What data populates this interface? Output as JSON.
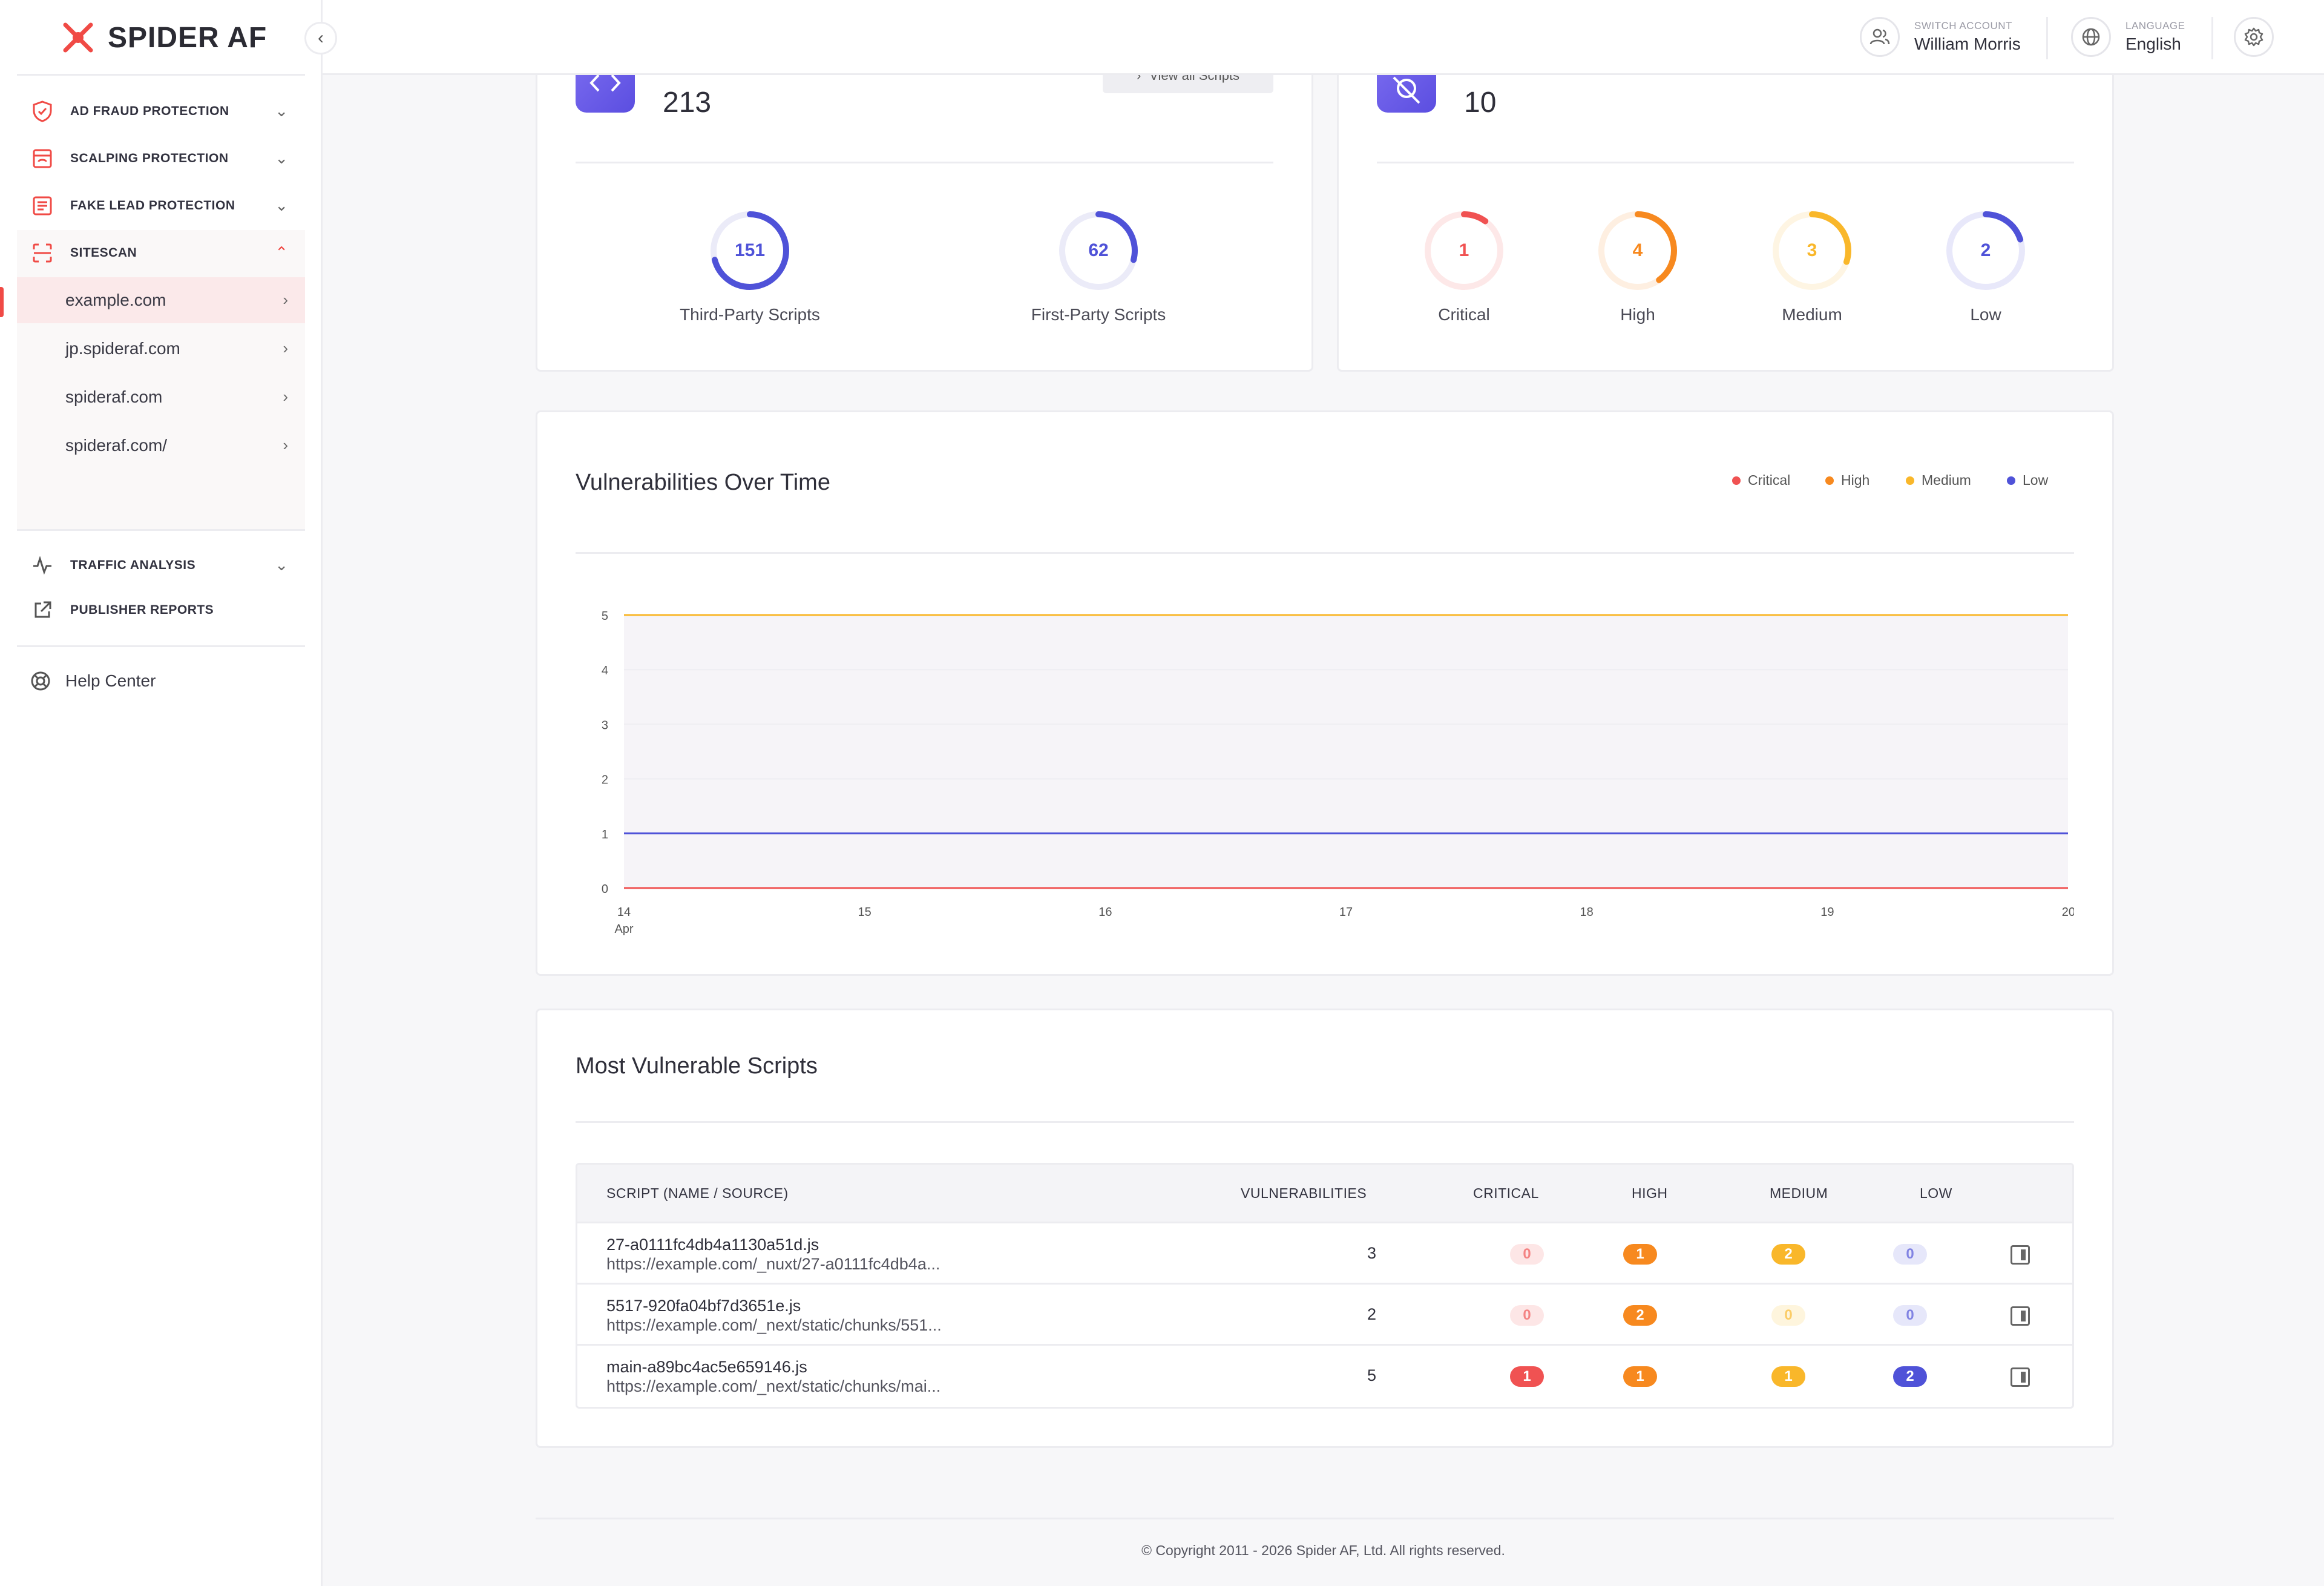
{
  "brand": {
    "name": "SPIDER AF"
  },
  "header": {
    "switch_account_label": "SWITCH ACCOUNT",
    "account_name": "William Morris",
    "language_label": "LANGUAGE",
    "language_value": "English"
  },
  "sidebar": {
    "items": [
      {
        "label": "AD FRAUD PROTECTION"
      },
      {
        "label": "SCALPING PROTECTION"
      },
      {
        "label": "FAKE LEAD PROTECTION"
      },
      {
        "label": "SITESCAN"
      }
    ],
    "sites": [
      "example.com",
      "jp.spideraf.com",
      "spideraf.com",
      "spideraf.com/"
    ],
    "active_site": "example.com",
    "lower_items": [
      {
        "label": "TRAFFIC ANALYSIS"
      },
      {
        "label": "PUBLISHER REPORTS"
      }
    ],
    "help": "Help Center"
  },
  "scripts_card": {
    "total": "213",
    "view_all": "View all Scripts",
    "third_party": {
      "value": "151",
      "label": "Third-Party Scripts",
      "fraction": 0.709
    },
    "first_party": {
      "value": "62",
      "label": "First-Party Scripts",
      "fraction": 0.291
    }
  },
  "vuln_card": {
    "total": "10",
    "levels": [
      {
        "value": "1",
        "label": "Critical",
        "fraction": 0.1,
        "color": "#f05252"
      },
      {
        "value": "4",
        "label": "High",
        "fraction": 0.4,
        "color": "#f7891f"
      },
      {
        "value": "3",
        "label": "Medium",
        "fraction": 0.3,
        "color": "#f9b72a"
      },
      {
        "value": "2",
        "label": "Low",
        "fraction": 0.2,
        "color": "#4f52d8"
      }
    ]
  },
  "chart_data": {
    "type": "line",
    "title": "Vulnerabilities Over Time",
    "x": [
      "14",
      "15",
      "16",
      "17",
      "18",
      "19",
      "20"
    ],
    "x_sub_label": "Apr",
    "ylim": [
      0,
      5
    ],
    "yticks": [
      "0",
      "1",
      "2",
      "3",
      "4",
      "5"
    ],
    "series": [
      {
        "name": "Critical",
        "color": "#f05252",
        "values": [
          0,
          0,
          0,
          0,
          0,
          0,
          0
        ]
      },
      {
        "name": "High",
        "color": "#f7891f",
        "values": [
          0,
          0,
          0,
          0,
          0,
          0,
          0
        ]
      },
      {
        "name": "Medium",
        "color": "#f9b72a",
        "values": [
          5,
          5,
          5,
          5,
          5,
          5,
          5
        ]
      },
      {
        "name": "Low",
        "color": "#4f52d8",
        "values": [
          1,
          1,
          1,
          1,
          1,
          1,
          1
        ]
      }
    ],
    "legend": "top-right",
    "grid": true
  },
  "table": {
    "title": "Most Vulnerable Scripts",
    "columns": [
      "SCRIPT (NAME / SOURCE)",
      "VULNERABILITIES",
      "CRITICAL",
      "HIGH",
      "MEDIUM",
      "LOW"
    ],
    "rows": [
      {
        "name": "27-a0111fc4db4a1130a51d.js",
        "source": "https://example.com/_nuxt/27-a0111fc4db4a...",
        "total": "3",
        "critical": "0",
        "high": "1",
        "medium": "2",
        "low": "0"
      },
      {
        "name": "5517-920fa04bf7d3651e.js",
        "source": "https://example.com/_next/static/chunks/551...",
        "total": "2",
        "critical": "0",
        "high": "2",
        "medium": "0",
        "low": "0"
      },
      {
        "name": "main-a89bc4ac5e659146.js",
        "source": "https://example.com/_next/static/chunks/mai...",
        "total": "5",
        "critical": "1",
        "high": "1",
        "medium": "1",
        "low": "2"
      }
    ]
  },
  "footer": "© Copyright 2011 - 2026 Spider AF, Ltd. All rights reserved."
}
